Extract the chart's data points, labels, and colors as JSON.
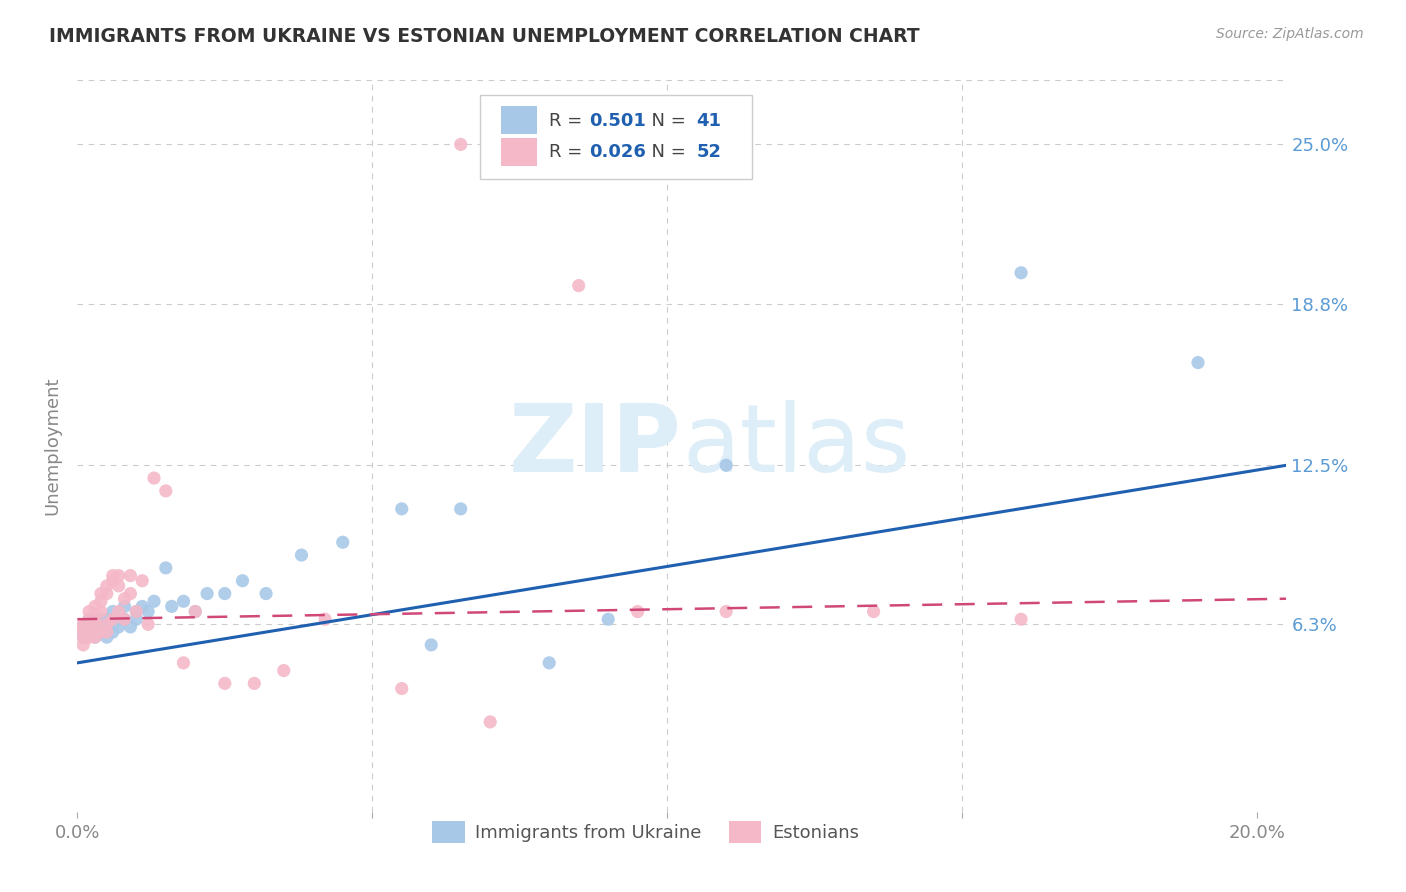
{
  "title": "IMMIGRANTS FROM UKRAINE VS ESTONIAN UNEMPLOYMENT CORRELATION CHART",
  "source": "Source: ZipAtlas.com",
  "ylabel": "Unemployment",
  "y_tick_labels_right": [
    "25.0%",
    "18.8%",
    "12.5%",
    "6.3%"
  ],
  "y_tick_vals": [
    0.25,
    0.188,
    0.125,
    0.063
  ],
  "xlim": [
    0.0,
    0.205
  ],
  "ylim": [
    -0.01,
    0.275
  ],
  "blue_R": "0.501",
  "blue_N": "41",
  "pink_R": "0.026",
  "pink_N": "52",
  "legend_labels": [
    "Immigrants from Ukraine",
    "Estonians"
  ],
  "blue_color": "#a8c8e8",
  "pink_color": "#f4b8c8",
  "blue_line_color": "#2060b0",
  "pink_line_color": "#d04878",
  "watermark_color": "#ddeef8",
  "background_color": "#ffffff",
  "blue_scatter_x": [
    0.001,
    0.001,
    0.002,
    0.002,
    0.003,
    0.003,
    0.003,
    0.004,
    0.004,
    0.005,
    0.005,
    0.006,
    0.006,
    0.007,
    0.007,
    0.008,
    0.008,
    0.009,
    0.01,
    0.01,
    0.011,
    0.012,
    0.013,
    0.015,
    0.016,
    0.018,
    0.02,
    0.022,
    0.025,
    0.028,
    0.032,
    0.038,
    0.045,
    0.055,
    0.06,
    0.065,
    0.08,
    0.09,
    0.11,
    0.16,
    0.19
  ],
  "blue_scatter_y": [
    0.062,
    0.058,
    0.065,
    0.06,
    0.063,
    0.058,
    0.06,
    0.065,
    0.062,
    0.058,
    0.065,
    0.06,
    0.068,
    0.065,
    0.062,
    0.07,
    0.065,
    0.062,
    0.068,
    0.065,
    0.07,
    0.068,
    0.072,
    0.085,
    0.07,
    0.072,
    0.068,
    0.075,
    0.075,
    0.08,
    0.075,
    0.09,
    0.095,
    0.108,
    0.055,
    0.108,
    0.048,
    0.065,
    0.125,
    0.2,
    0.165
  ],
  "pink_scatter_x": [
    0.001,
    0.001,
    0.001,
    0.001,
    0.001,
    0.002,
    0.002,
    0.002,
    0.002,
    0.002,
    0.003,
    0.003,
    0.003,
    0.003,
    0.003,
    0.004,
    0.004,
    0.004,
    0.004,
    0.005,
    0.005,
    0.005,
    0.005,
    0.006,
    0.006,
    0.006,
    0.007,
    0.007,
    0.007,
    0.008,
    0.008,
    0.009,
    0.009,
    0.01,
    0.011,
    0.012,
    0.013,
    0.015,
    0.018,
    0.02,
    0.025,
    0.03,
    0.035,
    0.042,
    0.055,
    0.065,
    0.07,
    0.085,
    0.095,
    0.11,
    0.135,
    0.16
  ],
  "pink_scatter_y": [
    0.062,
    0.06,
    0.063,
    0.058,
    0.055,
    0.06,
    0.065,
    0.068,
    0.058,
    0.063,
    0.06,
    0.058,
    0.065,
    0.07,
    0.063,
    0.06,
    0.075,
    0.072,
    0.068,
    0.06,
    0.078,
    0.075,
    0.063,
    0.082,
    0.08,
    0.065,
    0.082,
    0.078,
    0.068,
    0.073,
    0.065,
    0.082,
    0.075,
    0.068,
    0.08,
    0.063,
    0.12,
    0.115,
    0.048,
    0.068,
    0.04,
    0.04,
    0.045,
    0.065,
    0.038,
    0.25,
    0.025,
    0.195,
    0.068,
    0.068,
    0.068,
    0.065
  ],
  "blue_line_x": [
    0.0,
    0.205
  ],
  "blue_line_y": [
    0.048,
    0.125
  ],
  "pink_line_x": [
    0.0,
    0.205
  ],
  "pink_line_y": [
    0.065,
    0.073
  ]
}
